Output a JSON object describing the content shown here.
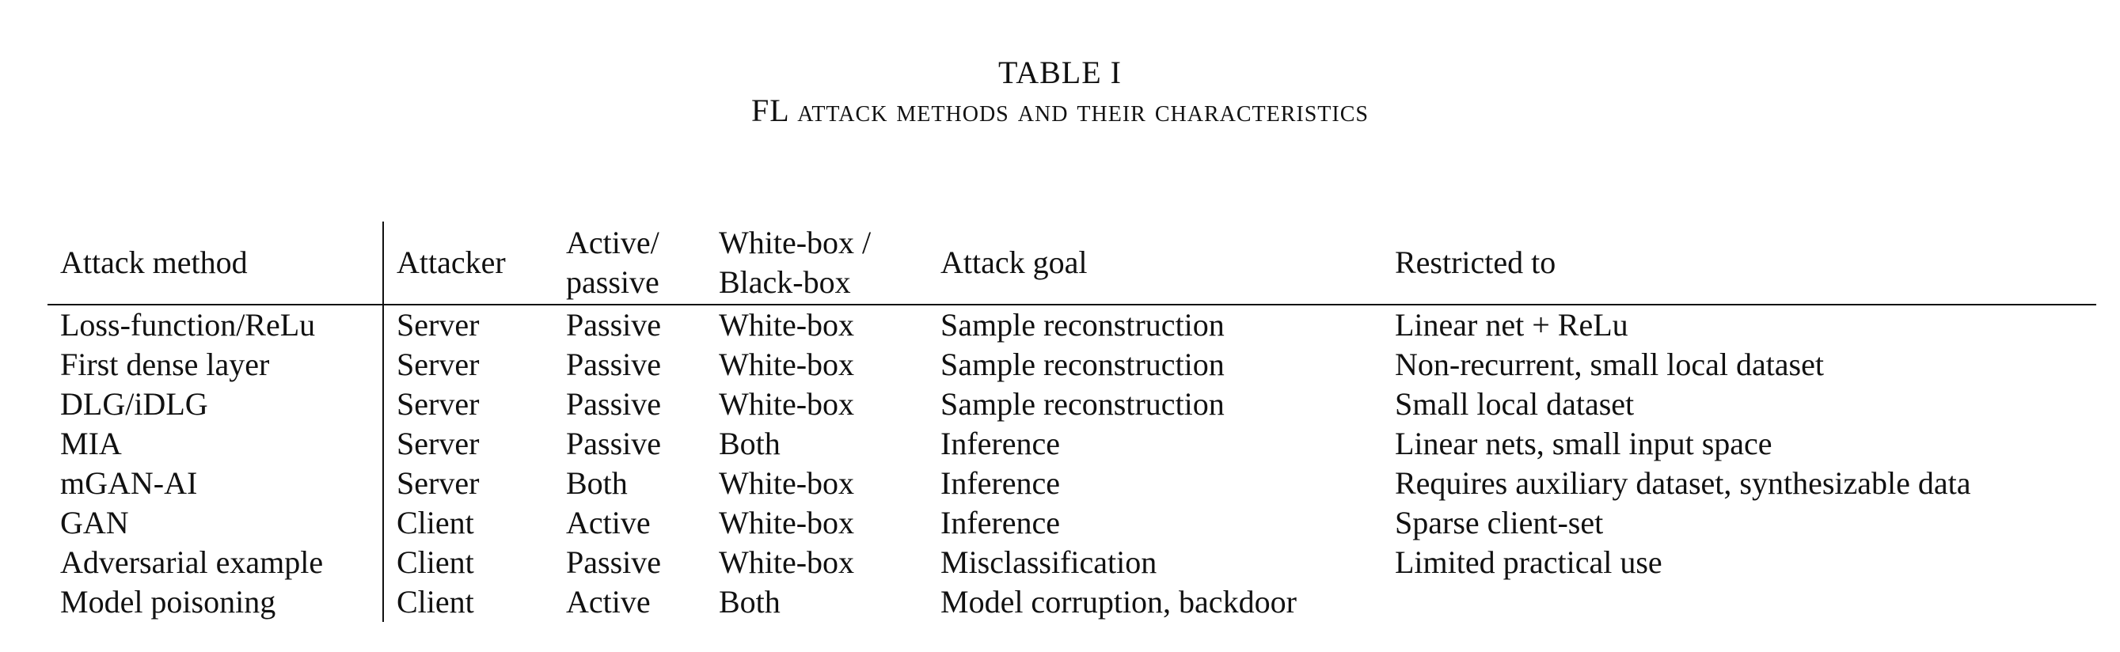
{
  "caption": {
    "label": "TABLE I",
    "title": "FL attack methods and their characteristics"
  },
  "table": {
    "headers": {
      "attack_method": "Attack method",
      "attacker": "Attacker",
      "active_passive_1": "Active/",
      "active_passive_2": "passive",
      "box_1": "White-box /",
      "box_2": "Black-box",
      "attack_goal": "Attack goal",
      "restricted_to": "Restricted to"
    },
    "rows": [
      [
        "Loss-function/ReLu",
        "Server",
        "Passive",
        "White-box",
        "Sample reconstruction",
        "Linear net + ReLu"
      ],
      [
        "First dense layer",
        "Server",
        "Passive",
        "White-box",
        "Sample reconstruction",
        "Non-recurrent, small local dataset"
      ],
      [
        "DLG/iDLG",
        "Server",
        "Passive",
        "White-box",
        "Sample reconstruction",
        "Small local dataset"
      ],
      [
        "MIA",
        "Server",
        "Passive",
        "Both",
        "Inference",
        "Linear nets, small input space"
      ],
      [
        "mGAN-AI",
        "Server",
        "Both",
        "White-box",
        "Inference",
        "Requires auxiliary dataset, synthesizable data"
      ],
      [
        "GAN",
        "Client",
        "Active",
        "White-box",
        "Inference",
        "Sparse client-set"
      ],
      [
        "Adversarial example",
        "Client",
        "Passive",
        "White-box",
        "Misclassification",
        "Limited practical use"
      ],
      [
        "Model poisoning",
        "Client",
        "Active",
        "Both",
        "Model corruption, backdoor",
        ""
      ]
    ]
  }
}
